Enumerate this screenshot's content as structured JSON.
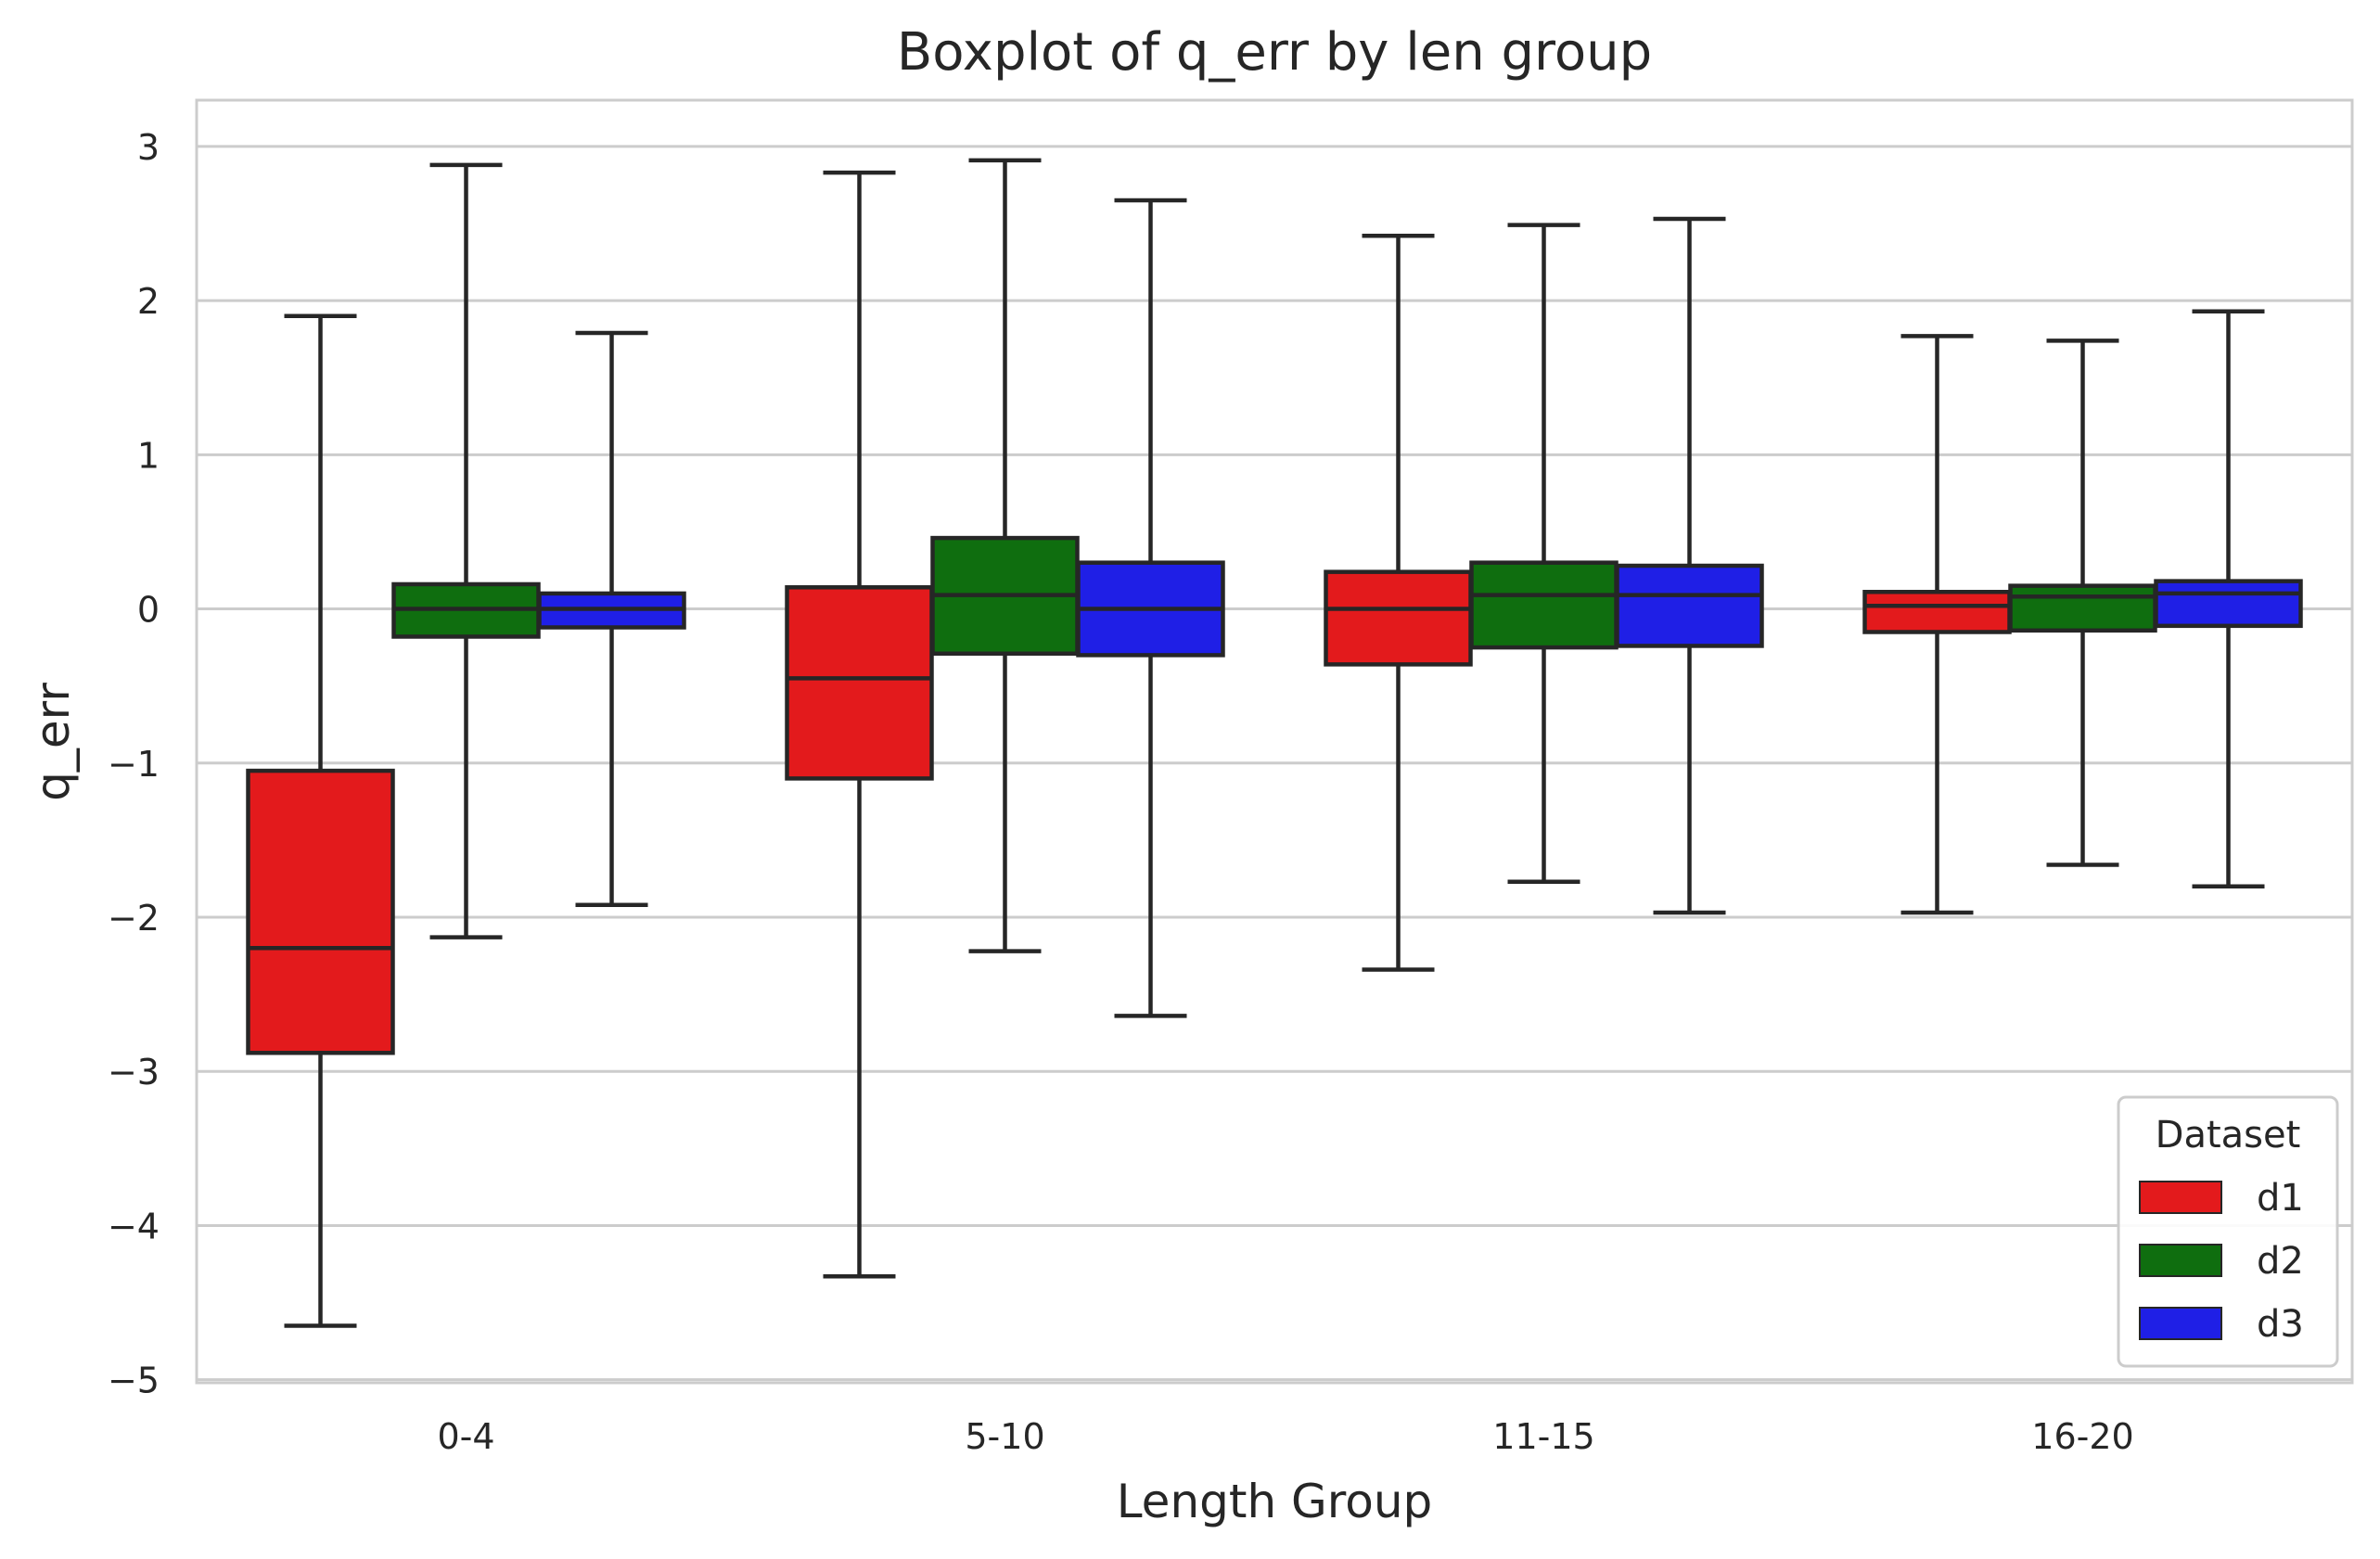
{
  "chart_data": {
    "type": "boxplot",
    "title": "Boxplot of q_err by len group",
    "xlabel": "Length Group",
    "ylabel": "q_err",
    "ylim": [
      -5.02,
      3.3
    ],
    "yticks": [
      3,
      2,
      1,
      0,
      -1,
      -2,
      -3,
      -4,
      -5
    ],
    "ytick_labels": [
      "3",
      "2",
      "1",
      "0",
      "−1",
      "−2",
      "−3",
      "−4",
      "−5"
    ],
    "grid": "horizontal",
    "legend_position": "lower-right",
    "legend_title": "Dataset",
    "categories": [
      "0-4",
      "5-10",
      "11-15",
      "16-20"
    ],
    "series": [
      {
        "name": "d1",
        "color": "#e31a1c",
        "boxes": [
          {
            "whislo": -4.65,
            "q1": -2.88,
            "med": -2.2,
            "q3": -1.05,
            "whishi": 1.9
          },
          {
            "whislo": -4.33,
            "q1": -1.1,
            "med": -0.45,
            "q3": 0.14,
            "whishi": 2.83
          },
          {
            "whislo": -2.34,
            "q1": -0.36,
            "med": 0.0,
            "q3": 0.24,
            "whishi": 2.42
          },
          {
            "whislo": -1.97,
            "q1": -0.15,
            "med": 0.02,
            "q3": 0.11,
            "whishi": 1.77
          }
        ]
      },
      {
        "name": "d2",
        "color": "#0f6e0f",
        "boxes": [
          {
            "whislo": -2.13,
            "q1": -0.18,
            "med": 0.0,
            "q3": 0.16,
            "whishi": 2.88
          },
          {
            "whislo": -2.22,
            "q1": -0.29,
            "med": 0.09,
            "q3": 0.46,
            "whishi": 2.91
          },
          {
            "whislo": -1.77,
            "q1": -0.25,
            "med": 0.09,
            "q3": 0.3,
            "whishi": 2.49
          },
          {
            "whislo": -1.66,
            "q1": -0.14,
            "med": 0.08,
            "q3": 0.15,
            "whishi": 1.74
          }
        ]
      },
      {
        "name": "d3",
        "color": "#1f1fe6",
        "boxes": [
          {
            "whislo": -1.92,
            "q1": -0.12,
            "med": 0.0,
            "q3": 0.1,
            "whishi": 1.79
          },
          {
            "whislo": -2.64,
            "q1": -0.3,
            "med": 0.0,
            "q3": 0.3,
            "whishi": 2.65
          },
          {
            "whislo": -1.97,
            "q1": -0.24,
            "med": 0.09,
            "q3": 0.28,
            "whishi": 2.53
          },
          {
            "whislo": -1.8,
            "q1": -0.11,
            "med": 0.1,
            "q3": 0.18,
            "whishi": 1.93
          }
        ]
      }
    ]
  }
}
